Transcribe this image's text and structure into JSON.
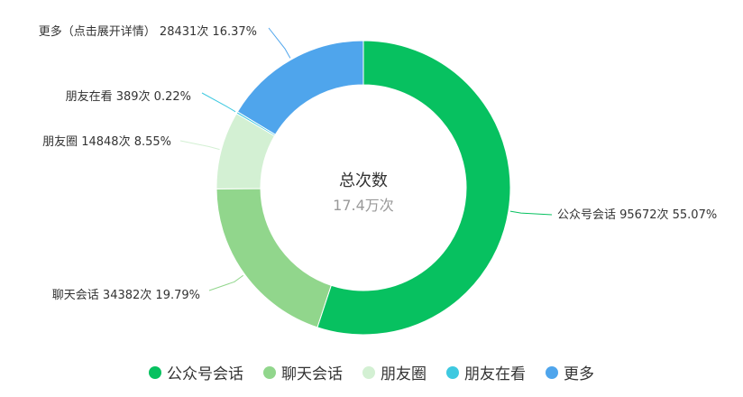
{
  "chart_data": {
    "type": "pie",
    "variant": "donut",
    "center_title": "总次数",
    "center_value": "17.4万次",
    "slices": [
      {
        "name": "公众号会话",
        "label_name": "公众号会话",
        "value": 95672,
        "percent": 55.07,
        "label": "公众号会话 95672次 55.07%",
        "color": "#07c160"
      },
      {
        "name": "聊天会话",
        "label_name": "聊天会话",
        "value": 34382,
        "percent": 19.79,
        "label": "聊天会话 34382次 19.79%",
        "color": "#91d68c"
      },
      {
        "name": "朋友圈",
        "label_name": "朋友圈",
        "value": 14848,
        "percent": 8.55,
        "label": "朋友圈 14848次 8.55%",
        "color": "#d3f0d3"
      },
      {
        "name": "朋友在看",
        "label_name": "朋友在看",
        "value": 389,
        "percent": 0.22,
        "label": "朋友在看 389次 0.22%",
        "color": "#3ec9e0"
      },
      {
        "name": "更多",
        "label_name": "更多（点击展开详情）",
        "value": 28431,
        "percent": 16.37,
        "label": "更多（点击展开详情） 28431次 16.37%",
        "color": "#4fa5ec"
      }
    ],
    "legend_position": "bottom",
    "start_angle": "top, clockwise"
  }
}
